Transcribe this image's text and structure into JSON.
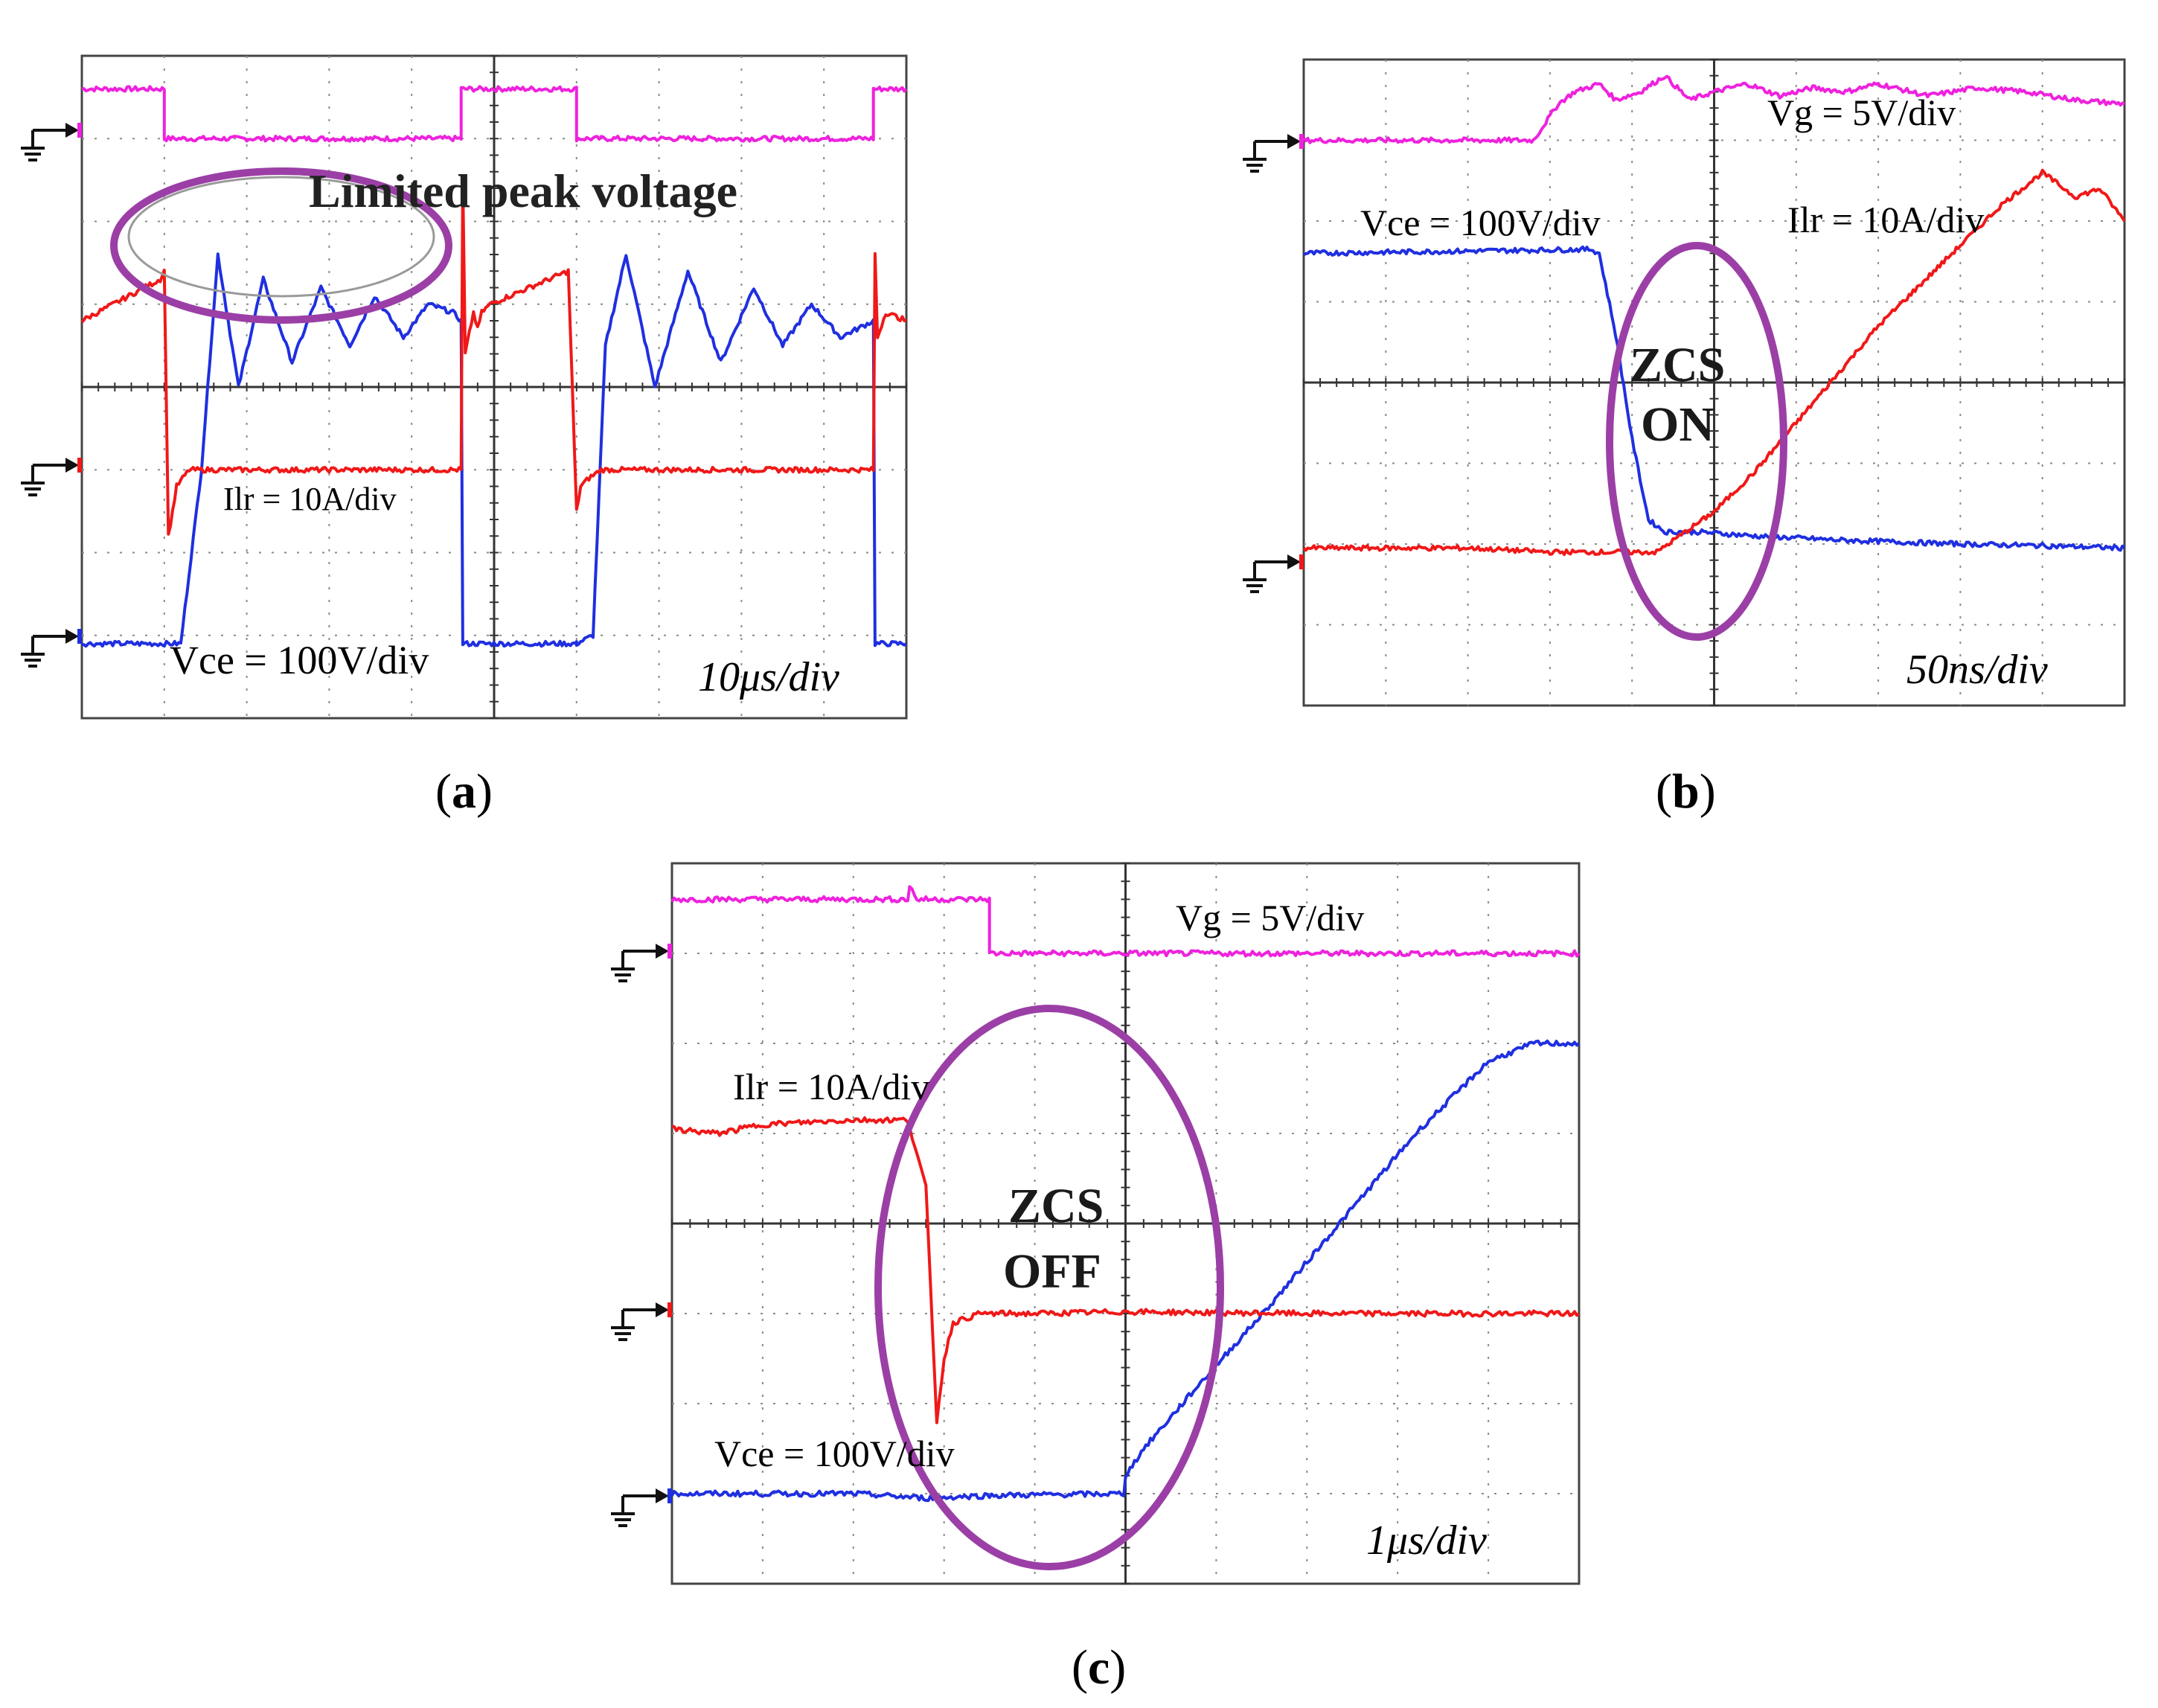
{
  "colors": {
    "vg": "#ee22dd",
    "vce": "#1f2fe0",
    "ilr": "#f01818",
    "highlight": "#9b3fa6",
    "grid": "#8a8a8a"
  },
  "chart_data": [
    {
      "type": "line",
      "panel": "a",
      "caption": "a",
      "timebase": "10μs/div",
      "x_divisions": 10,
      "y_divisions": 8,
      "annotations": [
        "Limited peak voltage"
      ],
      "series": [
        {
          "name": "Vg",
          "label": "",
          "color": "#ee22dd",
          "x": [
            0,
            1.0,
            1.0,
            4.6,
            4.6,
            6.0,
            6.0,
            9.6,
            9.6,
            10
          ],
          "y": [
            7.6,
            7.6,
            7.0,
            7.0,
            7.6,
            7.6,
            7.0,
            7.0,
            7.6,
            7.6
          ]
        },
        {
          "name": "Vce",
          "label": "Vce = 100V/div",
          "color": "#1f2fe0",
          "x": [
            0,
            1.2,
            1.45,
            1.65,
            1.9,
            2.2,
            2.55,
            2.9,
            3.25,
            3.55,
            3.9,
            4.2,
            4.5,
            4.6,
            4.62,
            6.0,
            6.0,
            6.0,
            6.2,
            6.35,
            6.6,
            6.95,
            7.35,
            7.75,
            8.15,
            8.5,
            8.85,
            9.2,
            9.6,
            9.62,
            10
          ],
          "y": [
            0.9,
            0.9,
            3.0,
            5.6,
            4.0,
            5.3,
            4.3,
            5.2,
            4.5,
            5.1,
            4.6,
            5.0,
            4.9,
            4.8,
            0.9,
            0.9,
            0.9,
            0.9,
            1.0,
            4.5,
            5.6,
            4.0,
            5.4,
            4.3,
            5.2,
            4.5,
            5.0,
            4.6,
            4.8,
            0.9,
            0.9
          ]
        },
        {
          "name": "Ilr",
          "label": "Ilr   = 10A/div",
          "color": "#f01818",
          "x": [
            0,
            0.95,
            1.0,
            1.05,
            1.15,
            1.3,
            4.6,
            4.62,
            4.65,
            4.75,
            4.8,
            4.85,
            4.95,
            5.9,
            6.0,
            6.05,
            6.15,
            6.3,
            9.6,
            9.62,
            9.65,
            9.75,
            10
          ],
          "y": [
            4.8,
            5.3,
            5.4,
            2.2,
            2.8,
            3.0,
            3.0,
            6.5,
            4.4,
            4.9,
            4.7,
            4.9,
            5.0,
            5.4,
            2.5,
            2.8,
            2.9,
            3.0,
            3.0,
            5.6,
            4.6,
            4.9,
            4.8
          ]
        }
      ]
    },
    {
      "type": "line",
      "panel": "b",
      "caption": "b",
      "timebase": "50ns/div",
      "x_divisions": 10,
      "y_divisions": 8,
      "annotations": [
        "ZCS",
        "ON"
      ],
      "series": [
        {
          "name": "Vg",
          "label": "Vg = 5V/div",
          "color": "#ee22dd",
          "x": [
            0,
            2.8,
            3.1,
            3.3,
            3.6,
            3.8,
            4.1,
            4.4,
            4.7,
            5.0,
            5.4,
            5.8,
            6.2,
            6.6,
            7.0,
            7.6,
            8.2,
            8.8,
            9.4,
            10
          ],
          "y": [
            7.0,
            7.0,
            7.45,
            7.6,
            7.7,
            7.5,
            7.6,
            7.8,
            7.5,
            7.6,
            7.7,
            7.55,
            7.65,
            7.6,
            7.7,
            7.55,
            7.65,
            7.6,
            7.5,
            7.45
          ]
        },
        {
          "name": "Vce",
          "label": "Vce = 100V/div",
          "color": "#1f2fe0",
          "x": [
            0,
            3.5,
            3.6,
            3.8,
            4.0,
            4.2,
            4.4,
            4.8,
            5.5,
            6.5,
            8.0,
            9.0,
            10
          ],
          "y": [
            5.6,
            5.65,
            5.6,
            4.6,
            3.3,
            2.3,
            2.15,
            2.15,
            2.1,
            2.05,
            2.0,
            1.98,
            1.95
          ]
        },
        {
          "name": "Ilr",
          "label": "Ilr = 10A/div",
          "color": "#f01818",
          "x": [
            0,
            2.0,
            3.0,
            4.0,
            4.3,
            5.0,
            5.5,
            6.0,
            6.5,
            7.0,
            7.5,
            8.0,
            8.5,
            9.0,
            9.4,
            9.7,
            10
          ],
          "y": [
            1.95,
            1.95,
            1.9,
            1.9,
            1.9,
            2.4,
            2.9,
            3.5,
            4.1,
            4.7,
            5.2,
            5.7,
            6.2,
            6.6,
            6.3,
            6.4,
            6.0
          ]
        }
      ]
    },
    {
      "type": "line",
      "panel": "c",
      "caption": "c",
      "timebase": "1μs/div",
      "x_divisions": 10,
      "y_divisions": 8,
      "annotations": [
        "ZCS",
        "OFF"
      ],
      "series": [
        {
          "name": "Vg",
          "label": "Vg = 5V/div",
          "color": "#ee22dd",
          "x": [
            0,
            2.6,
            2.62,
            2.7,
            3.5,
            3.5,
            10
          ],
          "y": [
            7.6,
            7.6,
            7.75,
            7.6,
            7.6,
            7.0,
            7.0
          ]
        },
        {
          "name": "Vce",
          "label": "Vce = 100V/div",
          "color": "#1f2fe0",
          "x": [
            0,
            2.0,
            2.8,
            3.5,
            4.98,
            5.0,
            5.2,
            5.8,
            6.6,
            7.4,
            8.2,
            9.0,
            9.5,
            10
          ],
          "y": [
            1.0,
            1.0,
            0.95,
            0.98,
            1.0,
            1.2,
            1.5,
            2.2,
            3.1,
            4.05,
            5.0,
            5.8,
            6.0,
            6.0
          ]
        },
        {
          "name": "Ilr",
          "label": "Ilr = 10A/div",
          "color": "#f01818",
          "x": [
            0,
            0.5,
            1.0,
            2.0,
            2.6,
            2.8,
            2.92,
            3.0,
            3.1,
            3.4,
            4.0,
            5.0,
            7.0,
            10
          ],
          "y": [
            5.05,
            5.0,
            5.1,
            5.15,
            5.15,
            4.4,
            1.8,
            2.5,
            2.9,
            3.0,
            3.0,
            3.02,
            3.0,
            3.0
          ]
        }
      ]
    }
  ]
}
